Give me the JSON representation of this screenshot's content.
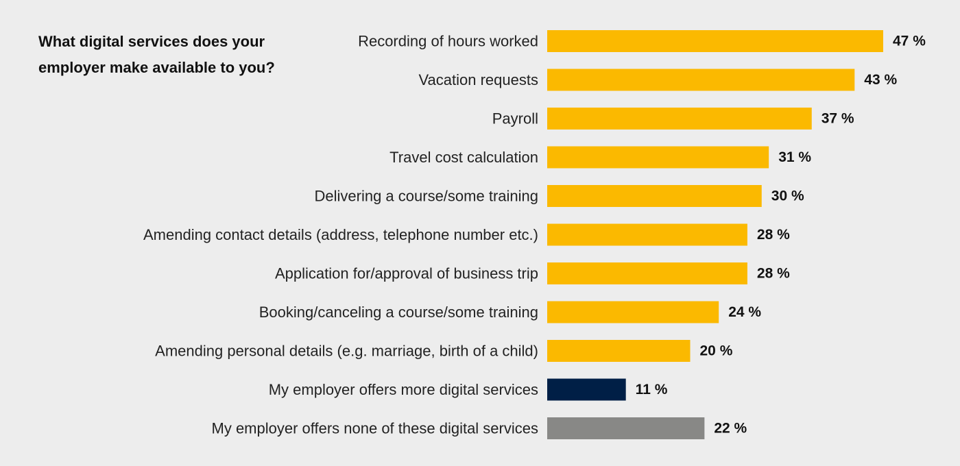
{
  "chart_data": {
    "type": "bar",
    "orientation": "horizontal",
    "title": "What digital services does your employer make available to you?",
    "unit": "%",
    "categories": [
      "Recording of hours worked",
      "Vacation requests",
      "Payroll",
      "Travel cost calculation",
      "Delivering a course/some training",
      "Amending contact details (address, telephone number etc.)",
      "Application for/approval of business trip",
      "Booking/canceling a course/some training",
      "Amending personal details (e.g. marriage, birth of a child)",
      "My employer offers more digital services",
      "My employer offers none of these digital services"
    ],
    "values": [
      47,
      43,
      37,
      31,
      30,
      28,
      28,
      24,
      20,
      11,
      22
    ],
    "value_labels": [
      "47 %",
      "43 %",
      "37 %",
      "31 %",
      "30 %",
      "28 %",
      "28 %",
      "24 %",
      "20 %",
      "11 %",
      "22 %"
    ],
    "bar_colors": [
      "#fbb900",
      "#fbb900",
      "#fbb900",
      "#fbb900",
      "#fbb900",
      "#fbb900",
      "#fbb900",
      "#fbb900",
      "#fbb900",
      "#001f46",
      "#888886"
    ],
    "xlim": [
      0,
      47
    ],
    "grid": false,
    "legend": "none"
  }
}
